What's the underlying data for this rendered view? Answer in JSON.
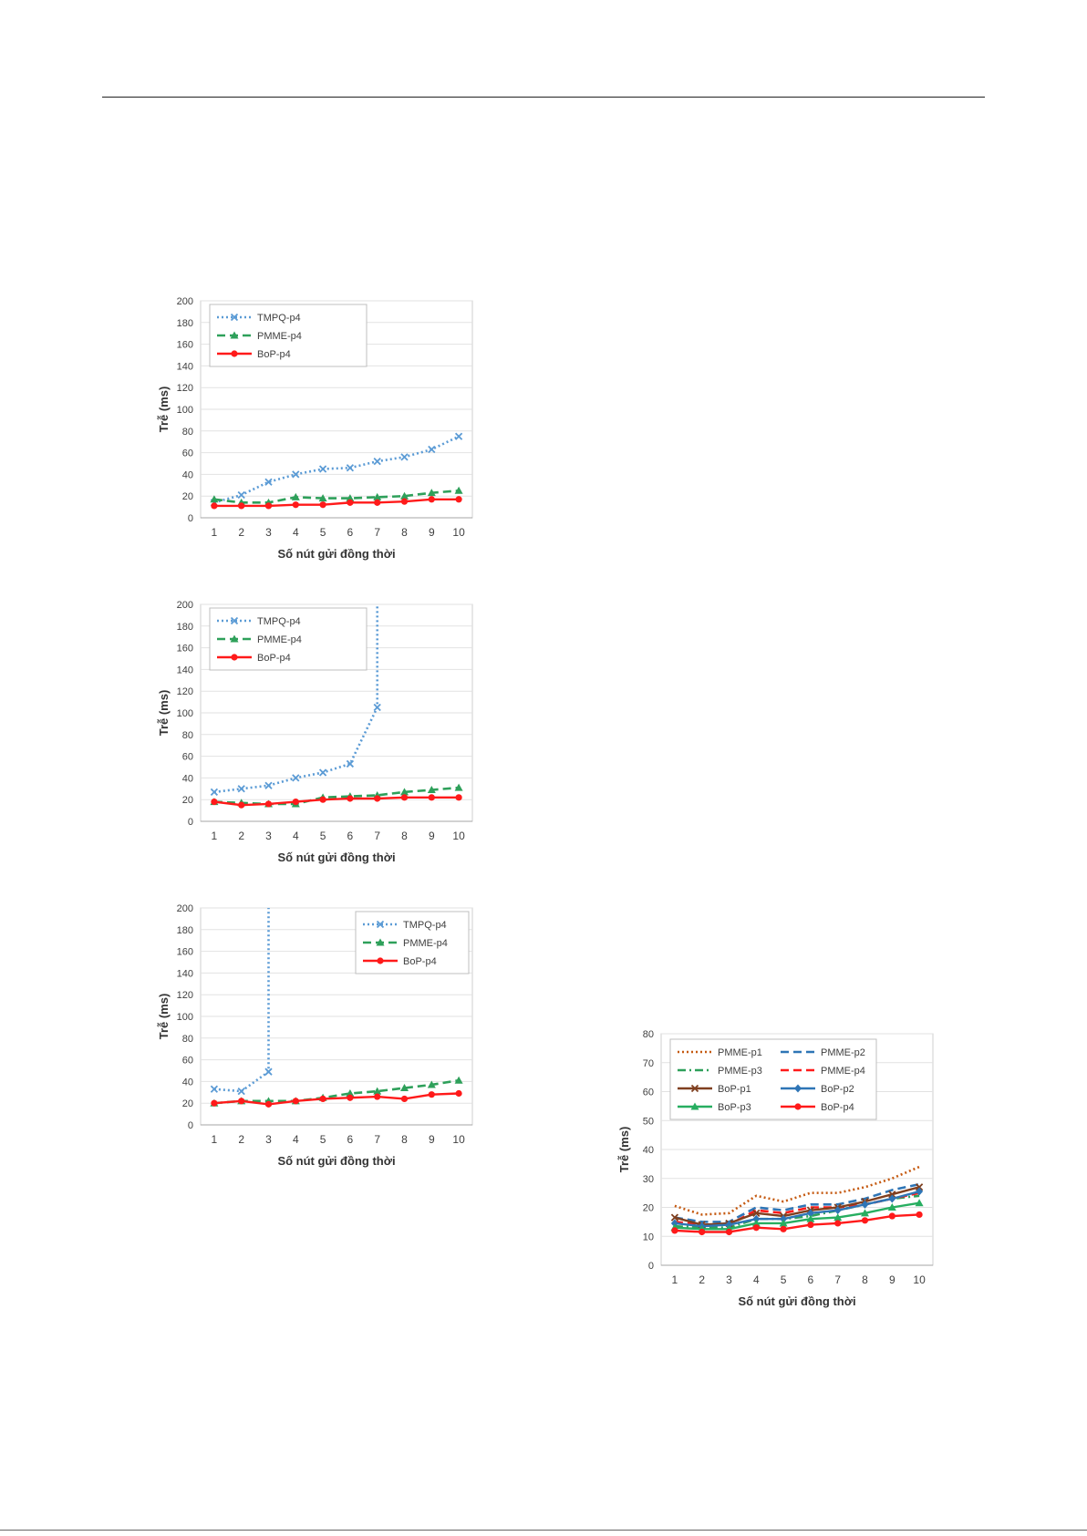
{
  "chart_data": [
    {
      "type": "line",
      "xlabel": "Số nút gửi đồng thời",
      "ylabel": "Trễ (ms)",
      "x": [
        1,
        2,
        3,
        4,
        5,
        6,
        7,
        8,
        9,
        10
      ],
      "ylim": [
        0,
        200
      ],
      "yticks": [
        0,
        20,
        40,
        60,
        80,
        100,
        120,
        140,
        160,
        180,
        200
      ],
      "grid": true,
      "legend_position": "top-left",
      "series": [
        {
          "name": "TMPQ-p4",
          "color": "#5b9bd5",
          "style": "dotted",
          "marker": "x",
          "values": [
            14,
            21,
            33,
            40,
            45,
            46,
            52,
            56,
            63,
            75
          ]
        },
        {
          "name": "PMME-p4",
          "color": "#2ea05a",
          "style": "dashed",
          "marker": "triangle",
          "values": [
            17,
            14,
            14,
            19,
            18,
            18,
            19,
            20,
            23,
            25
          ]
        },
        {
          "name": "BoP-p4",
          "color": "#ff1a1a",
          "style": "solid",
          "marker": "circle",
          "values": [
            11,
            11,
            11,
            12,
            12,
            14,
            14,
            15,
            17,
            17
          ]
        }
      ]
    },
    {
      "type": "line",
      "xlabel": "Số nút gửi đồng thời",
      "ylabel": "Trễ (ms)",
      "x": [
        1,
        2,
        3,
        4,
        5,
        6,
        7,
        8,
        9,
        10
      ],
      "ylim": [
        0,
        200
      ],
      "yticks": [
        0,
        20,
        40,
        60,
        80,
        100,
        120,
        140,
        160,
        180,
        200
      ],
      "grid": true,
      "legend_position": "top-left",
      "series": [
        {
          "name": "TMPQ-p4",
          "color": "#5b9bd5",
          "style": "dotted",
          "marker": "x",
          "values": [
            27,
            30,
            33,
            40,
            45,
            53,
            105,
            null,
            null,
            null
          ],
          "continues_off_chart_after": 7
        },
        {
          "name": "PMME-p4",
          "color": "#2ea05a",
          "style": "dashed",
          "marker": "triangle",
          "values": [
            18,
            17,
            16,
            16,
            22,
            23,
            24,
            27,
            29,
            31
          ]
        },
        {
          "name": "BoP-p4",
          "color": "#ff1a1a",
          "style": "solid",
          "marker": "circle",
          "values": [
            18,
            15,
            16,
            18,
            20,
            21,
            21,
            22,
            22,
            22
          ]
        }
      ]
    },
    {
      "type": "line",
      "xlabel": "Số nút gửi đồng thời",
      "ylabel": "Trễ (ms)",
      "x": [
        1,
        2,
        3,
        4,
        5,
        6,
        7,
        8,
        9,
        10
      ],
      "ylim": [
        0,
        200
      ],
      "yticks": [
        0,
        20,
        40,
        60,
        80,
        100,
        120,
        140,
        160,
        180,
        200
      ],
      "grid": true,
      "legend_position": "top-right",
      "series": [
        {
          "name": "TMPQ-p4",
          "color": "#5b9bd5",
          "style": "dotted",
          "marker": "x",
          "values": [
            33,
            31,
            49,
            null,
            null,
            null,
            null,
            null,
            null,
            null
          ],
          "continues_off_chart_after": 3
        },
        {
          "name": "PMME-p4",
          "color": "#2ea05a",
          "style": "dashed",
          "marker": "triangle",
          "values": [
            20,
            22,
            22,
            22,
            25,
            29,
            31,
            34,
            37,
            41
          ]
        },
        {
          "name": "BoP-p4",
          "color": "#ff1a1a",
          "style": "solid",
          "marker": "circle",
          "values": [
            20,
            22,
            19,
            22,
            24,
            25,
            26,
            24,
            28,
            29
          ]
        }
      ]
    },
    {
      "type": "line",
      "xlabel": "Số nút gửi đồng thời",
      "ylabel": "Trễ (ms)",
      "x": [
        1,
        2,
        3,
        4,
        5,
        6,
        7,
        8,
        9,
        10
      ],
      "ylim": [
        0,
        80
      ],
      "yticks": [
        0,
        10,
        20,
        30,
        40,
        50,
        60,
        70,
        80
      ],
      "grid": true,
      "legend_position": "top",
      "series": [
        {
          "name": "PMME-p1",
          "color": "#c55a11",
          "style": "dotted",
          "marker": "none",
          "values": [
            20.5,
            17.5,
            18,
            24,
            22,
            25,
            25,
            27,
            30,
            34
          ]
        },
        {
          "name": "PMME-p2",
          "color": "#2e75b6",
          "style": "dashed",
          "marker": "none",
          "values": [
            16.5,
            15,
            15,
            20,
            19,
            21,
            21,
            23,
            26,
            28
          ]
        },
        {
          "name": "PMME-p3",
          "color": "#2ea05a",
          "style": "dashdot",
          "marker": "none",
          "values": [
            13.5,
            13,
            13,
            16,
            16,
            17,
            19,
            21,
            23,
            24
          ]
        },
        {
          "name": "PMME-p4",
          "color": "#ff1a1a",
          "style": "dashed",
          "marker": "none",
          "values": [
            15,
            14,
            14,
            19,
            18,
            20,
            20,
            21,
            23,
            25
          ]
        },
        {
          "name": "BoP-p1",
          "color": "#7f3f1f",
          "style": "solid",
          "marker": "x",
          "values": [
            16.5,
            14,
            14.5,
            18,
            17,
            19,
            20,
            22,
            24.5,
            27
          ]
        },
        {
          "name": "BoP-p2",
          "color": "#2e75b6",
          "style": "solid",
          "marker": "diamond",
          "values": [
            14.5,
            13.5,
            14,
            16,
            16,
            18,
            19,
            21,
            23,
            25.5
          ]
        },
        {
          "name": "BoP-p3",
          "color": "#27ae60",
          "style": "solid",
          "marker": "triangle",
          "values": [
            13,
            12.5,
            12.5,
            14.5,
            14.5,
            16,
            16.5,
            18,
            20,
            21.5
          ]
        },
        {
          "name": "BoP-p4",
          "color": "#ff1a1a",
          "style": "solid",
          "marker": "circle",
          "values": [
            12,
            11.5,
            11.5,
            13,
            12.5,
            14,
            14.5,
            15.5,
            17,
            17.5
          ]
        }
      ]
    }
  ]
}
